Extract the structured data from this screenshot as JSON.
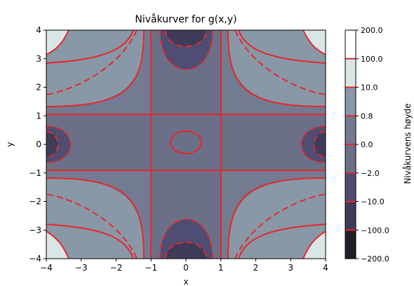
{
  "chart_data": {
    "type": "contour",
    "title": "Nivåkurver for g(x,y)",
    "xlabel": "x",
    "ylabel": "y",
    "xlim": [
      -4,
      4
    ],
    "ylim": [
      -4,
      4
    ],
    "x_ticks": [
      -4,
      -3,
      -2,
      -1,
      0,
      1,
      2,
      3,
      4
    ],
    "y_ticks": [
      -4,
      -3,
      -2,
      -1,
      0,
      1,
      2,
      3,
      4
    ],
    "x_tick_labels": [
      "−4",
      "−3",
      "−2",
      "−1",
      "0",
      "1",
      "2",
      "3",
      "4"
    ],
    "y_tick_labels": [
      "−4",
      "−3",
      "−2",
      "−1",
      "0",
      "1",
      "2",
      "3",
      "4"
    ],
    "contour_levels": [
      -200.0,
      -100.0,
      -10.0,
      -2.0,
      0.0,
      0.8,
      10.0,
      100.0,
      200.0
    ],
    "line_color": "#e8272a",
    "negative_levels_linestyle": "dashed",
    "grid": false,
    "colorbar": {
      "label": "Nivåkurvens høyde",
      "tick_labels": [
        "−200.0",
        "−100.0",
        "−10.0",
        "−2.0",
        "0.0",
        "0.8",
        "10.0",
        "100.0",
        "200.0"
      ],
      "band_colors": [
        "#1f1f27",
        "#3f3c5a",
        "#4f4d72",
        "#6b7088",
        "#727b92",
        "#8898a7",
        "#d8e6e6"
      ]
    }
  }
}
